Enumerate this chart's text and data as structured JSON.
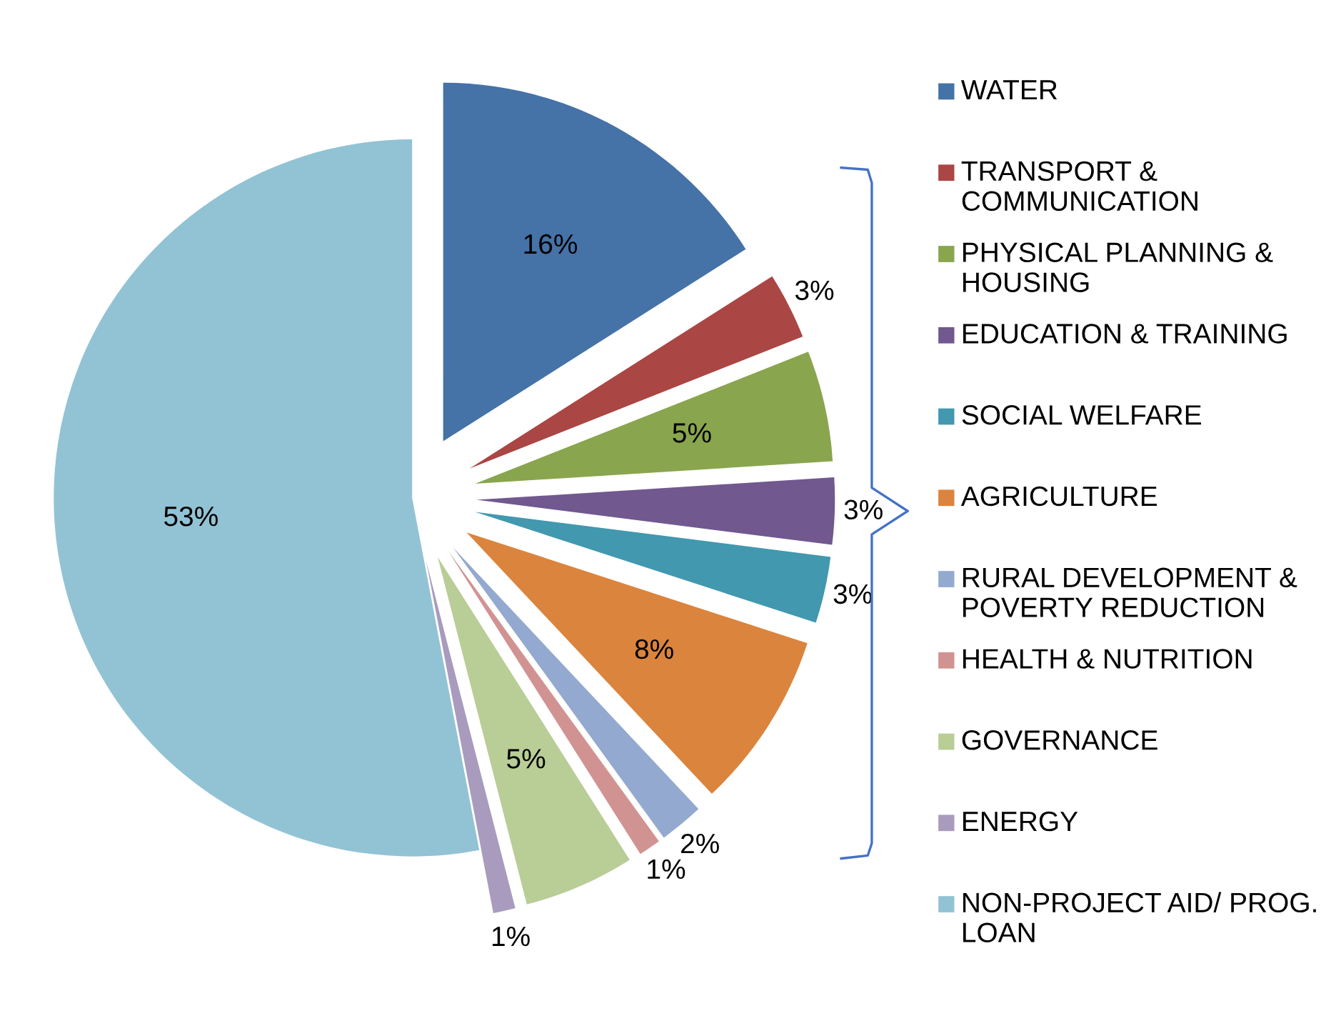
{
  "chart_data": {
    "type": "pie",
    "categories": [
      "WATER",
      "TRANSPORT & COMMUNICATION",
      "PHYSICAL PLANNING & HOUSING",
      "EDUCATION & TRAINING",
      "SOCIAL WELFARE",
      "AGRICULTURE",
      "RURAL DEVELOPMENT & POVERTY REDUCTION",
      "HEALTH & NUTRITION",
      "GOVERNANCE",
      "ENERGY",
      "NON-PROJECT AID/ PROG. LOAN"
    ],
    "values": [
      16,
      3,
      5,
      3,
      3,
      8,
      2,
      1,
      5,
      1,
      53
    ],
    "colors": [
      "#4572a7",
      "#aa4643",
      "#89a54e",
      "#71588f",
      "#4198af",
      "#db843d",
      "#93a9cf",
      "#d19392",
      "#b9cd96",
      "#a99bbd",
      "#92c3d4"
    ],
    "value_labels": [
      "16%",
      "3%",
      "5%",
      "3%",
      "3%",
      "8%",
      "2%",
      "1%",
      "5%",
      "1%",
      "53%"
    ],
    "legend": "right"
  }
}
